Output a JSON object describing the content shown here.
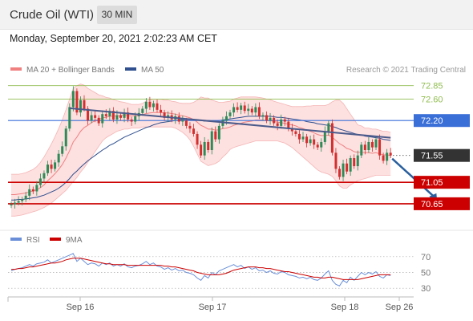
{
  "header": {
    "title": "Crude Oil (WTI)",
    "timeframe": "30 MIN"
  },
  "datetime": "Monday, September 20, 2021 2:02:23 AM CET",
  "colors": {
    "bollinger": "#f08080",
    "bollinger_fill": "#fde0e0",
    "ma50": "#2f4f8f",
    "up": "#2e8b57",
    "down": "#d32f2f",
    "resistance_green": "#8fbc4f",
    "pivot_blue": "#3a6fd8",
    "support_red": "#cc0000",
    "current": "#333333",
    "trend": "#4a5a8a",
    "arrow": "#2a5f9e",
    "rsi": "#6a8fd8",
    "rsi_ma": "#cc0000"
  },
  "chart_data": [
    {
      "type": "candlestick",
      "legend": [
        {
          "name": "MA 20 + Bollinger Bands",
          "color": "#f08080"
        },
        {
          "name": "MA 50",
          "color": "#2f4f8f"
        }
      ],
      "credit": "Research © 2021 Trading Central",
      "x_ticks": [
        "Sep 16",
        "Sep 17",
        "Sep 18",
        "Sep 26"
      ],
      "ylim": [
        70.2,
        73.1
      ],
      "levels": [
        {
          "label": "72.85",
          "value": 72.85,
          "kind": "resistance"
        },
        {
          "label": "72.60",
          "value": 72.6,
          "kind": "resistance"
        },
        {
          "label": "72.20",
          "value": 72.2,
          "kind": "pivot"
        },
        {
          "label": "71.55",
          "value": 71.55,
          "kind": "current"
        },
        {
          "label": "71.05",
          "value": 71.05,
          "kind": "support"
        },
        {
          "label": "70.65",
          "value": 70.65,
          "kind": "support"
        }
      ],
      "close": [
        70.64,
        70.67,
        70.7,
        70.73,
        70.8,
        70.92,
        70.88,
        71.0,
        71.12,
        71.22,
        71.38,
        71.3,
        71.42,
        71.58,
        71.72,
        72.05,
        72.45,
        72.75,
        72.35,
        72.58,
        72.42,
        72.2,
        72.3,
        72.25,
        72.15,
        72.32,
        72.28,
        72.38,
        72.22,
        72.3,
        72.25,
        72.35,
        72.22,
        72.18,
        72.28,
        72.34,
        72.42,
        72.55,
        72.45,
        72.52,
        72.4,
        72.35,
        72.25,
        72.3,
        72.22,
        72.28,
        72.18,
        72.2,
        72.1,
        72.05,
        71.95,
        71.75,
        71.55,
        71.8,
        71.65,
        72.0,
        71.85,
        72.1,
        72.2,
        72.28,
        72.35,
        72.45,
        72.4,
        72.48,
        72.38,
        72.42,
        72.35,
        72.45,
        72.28,
        72.3,
        72.2,
        72.25,
        72.15,
        72.1,
        72.22,
        72.18,
        72.05,
        72.0,
        71.95,
        71.85,
        71.9,
        71.78,
        71.85,
        71.75,
        71.7,
        71.8,
        72.0,
        72.15,
        71.6,
        71.3,
        71.15,
        71.4,
        71.25,
        71.5,
        71.35,
        71.55,
        71.75,
        71.65,
        71.8,
        71.7,
        71.85,
        71.55,
        71.45,
        71.6,
        71.55
      ],
      "ma20": [
        70.82,
        70.82,
        70.83,
        70.84,
        70.85,
        70.87,
        70.89,
        70.91,
        70.95,
        71.0,
        71.08,
        71.14,
        71.21,
        71.29,
        71.38,
        71.5,
        71.64,
        71.8,
        71.89,
        72.0,
        72.07,
        72.11,
        72.16,
        72.2,
        72.22,
        72.25,
        72.26,
        72.28,
        72.28,
        72.29,
        72.29,
        72.3,
        72.29,
        72.29,
        72.29,
        72.29,
        72.31,
        72.33,
        72.34,
        72.35,
        72.35,
        72.35,
        72.34,
        72.34,
        72.33,
        72.32,
        72.3,
        72.29,
        72.27,
        72.25,
        72.22,
        72.17,
        72.11,
        72.08,
        72.04,
        72.04,
        72.02,
        72.03,
        72.05,
        72.06,
        72.08,
        72.11,
        72.13,
        72.15,
        72.17,
        72.18,
        72.19,
        72.21,
        72.21,
        72.21,
        72.2,
        72.2,
        72.18,
        72.17,
        72.16,
        72.15,
        72.13,
        72.12,
        72.1,
        72.07,
        72.05,
        72.02,
        72.0,
        71.97,
        71.94,
        71.92,
        71.92,
        71.93,
        71.89,
        71.83,
        71.77,
        71.73,
        71.68,
        71.66,
        71.62,
        71.61,
        71.61,
        71.6,
        71.6,
        71.59,
        71.6,
        71.58,
        71.56,
        71.56,
        71.55
      ],
      "band_upper": [
        71.2,
        71.2,
        71.2,
        71.21,
        71.23,
        71.26,
        71.29,
        71.34,
        71.42,
        71.52,
        71.64,
        71.76,
        71.9,
        72.05,
        72.21,
        72.4,
        72.6,
        72.8,
        72.85,
        72.88,
        72.86,
        72.8,
        72.76,
        72.72,
        72.68,
        72.66,
        72.63,
        72.62,
        72.59,
        72.57,
        72.55,
        72.54,
        72.52,
        72.5,
        72.5,
        72.5,
        72.52,
        72.56,
        72.58,
        72.6,
        72.6,
        72.6,
        72.58,
        72.58,
        72.56,
        72.55,
        72.53,
        72.52,
        72.52,
        72.52,
        72.54,
        72.58,
        72.64,
        72.62,
        72.62,
        72.58,
        72.56,
        72.54,
        72.54,
        72.55,
        72.56,
        72.6,
        72.62,
        72.64,
        72.64,
        72.64,
        72.64,
        72.64,
        72.63,
        72.62,
        72.6,
        72.59,
        72.56,
        72.54,
        72.52,
        72.5,
        72.48,
        72.46,
        72.46,
        72.46,
        72.46,
        72.47,
        72.47,
        72.48,
        72.48,
        72.48,
        72.48,
        72.5,
        72.55,
        72.58,
        72.58,
        72.52,
        72.42,
        72.32,
        72.22,
        72.12,
        72.1,
        72.06,
        72.06,
        72.04,
        72.04,
        72.02,
        72.0,
        72.0,
        71.98
      ],
      "band_lower": [
        70.42,
        70.42,
        70.43,
        70.44,
        70.46,
        70.48,
        70.5,
        70.52,
        70.55,
        70.58,
        70.62,
        70.66,
        70.72,
        70.78,
        70.84,
        70.9,
        70.98,
        71.06,
        71.14,
        71.24,
        71.32,
        71.42,
        71.52,
        71.62,
        71.72,
        71.82,
        71.88,
        71.92,
        71.96,
        72.0,
        72.02,
        72.04,
        72.04,
        72.06,
        72.06,
        72.06,
        72.08,
        72.08,
        72.08,
        72.08,
        72.08,
        72.08,
        72.08,
        72.08,
        72.08,
        72.06,
        72.02,
        71.98,
        71.92,
        71.84,
        71.72,
        71.58,
        71.44,
        71.4,
        71.36,
        71.38,
        71.4,
        71.44,
        71.52,
        71.58,
        71.66,
        71.7,
        71.72,
        71.74,
        71.76,
        71.78,
        71.8,
        71.82,
        71.82,
        71.82,
        71.82,
        71.82,
        71.82,
        71.82,
        71.8,
        71.78,
        71.74,
        71.7,
        71.64,
        71.58,
        71.52,
        71.46,
        71.4,
        71.34,
        71.28,
        71.24,
        71.22,
        71.2,
        71.16,
        71.08,
        70.98,
        70.94,
        70.94,
        71.0,
        71.04,
        71.08,
        71.1,
        71.12,
        71.14,
        71.16,
        71.18,
        71.18,
        71.18,
        71.18,
        71.18
      ],
      "ma50": [
        70.72,
        70.72,
        70.73,
        70.73,
        70.74,
        70.75,
        70.76,
        70.77,
        70.79,
        70.81,
        70.84,
        70.87,
        70.9,
        70.94,
        70.99,
        71.05,
        71.12,
        71.2,
        71.26,
        71.33,
        71.39,
        71.45,
        71.5,
        71.55,
        71.6,
        71.65,
        71.69,
        71.74,
        71.77,
        71.81,
        71.85,
        71.89,
        71.92,
        71.95,
        71.98,
        72.01,
        72.04,
        72.07,
        72.09,
        72.12,
        72.14,
        72.16,
        72.17,
        72.18,
        72.19,
        72.2,
        72.21,
        72.22,
        72.22,
        72.22,
        72.22,
        72.21,
        72.2,
        72.19,
        72.19,
        72.19,
        72.19,
        72.2,
        72.21,
        72.22,
        72.23,
        72.24,
        72.25,
        72.26,
        72.27,
        72.28,
        72.28,
        72.28,
        72.28,
        72.28,
        72.28,
        72.28,
        72.27,
        72.26,
        72.26,
        72.25,
        72.24,
        72.23,
        72.22,
        72.21,
        72.2,
        72.18,
        72.17,
        72.16,
        72.14,
        72.13,
        72.12,
        72.11,
        72.09,
        72.07,
        72.04,
        72.02,
        72.0,
        71.98,
        71.96,
        71.94,
        71.93,
        71.91,
        71.9,
        71.89,
        71.88,
        71.87,
        71.85,
        71.84,
        71.83
      ],
      "trendline": {
        "start": [
          16,
          72.43
        ],
        "end": [
          104,
          71.88
        ]
      },
      "projection": {
        "from": [
          104,
          71.55
        ],
        "to": [
          117,
          70.65
        ]
      }
    },
    {
      "type": "line",
      "legend": [
        {
          "name": "RSI",
          "color": "#6a8fd8"
        },
        {
          "name": "9MA",
          "color": "#cc0000"
        }
      ],
      "ylim": [
        20,
        80
      ],
      "levels": [
        70,
        50,
        30
      ],
      "rsi": [
        52,
        54,
        55,
        56,
        58,
        60,
        58,
        61,
        62,
        63,
        66,
        62,
        64,
        66,
        68,
        70,
        72,
        74,
        64,
        68,
        64,
        60,
        62,
        61,
        58,
        62,
        60,
        62,
        58,
        60,
        58,
        61,
        57,
        56,
        58,
        59,
        61,
        64,
        60,
        62,
        58,
        57,
        54,
        56,
        53,
        55,
        52,
        53,
        50,
        49,
        47,
        43,
        40,
        46,
        43,
        50,
        47,
        52,
        54,
        56,
        58,
        60,
        57,
        59,
        55,
        57,
        54,
        56,
        52,
        53,
        50,
        52,
        49,
        48,
        51,
        50,
        47,
        46,
        45,
        43,
        44,
        42,
        44,
        41,
        40,
        43,
        48,
        52,
        40,
        35,
        33,
        40,
        37,
        44,
        40,
        45,
        50,
        47,
        50,
        48,
        51,
        45,
        43,
        47,
        46
      ],
      "rsi_ma": [
        54,
        54,
        55,
        55,
        56,
        57,
        57,
        58,
        59,
        60,
        61,
        62,
        62,
        63,
        64,
        66,
        67,
        68,
        68,
        68,
        67,
        66,
        65,
        64,
        63,
        62,
        61,
        61,
        60,
        60,
        60,
        60,
        59,
        59,
        59,
        59,
        59,
        59,
        59,
        59,
        59,
        59,
        58,
        58,
        57,
        57,
        56,
        55,
        54,
        53,
        52,
        50,
        49,
        48,
        47,
        47,
        47,
        47,
        48,
        49,
        51,
        53,
        54,
        55,
        56,
        57,
        57,
        57,
        56,
        56,
        55,
        55,
        54,
        53,
        52,
        51,
        51,
        50,
        49,
        48,
        47,
        46,
        45,
        44,
        44,
        43,
        43,
        44,
        44,
        43,
        42,
        41,
        41,
        41,
        41,
        41,
        42,
        43,
        44,
        45,
        46,
        47,
        47,
        47,
        47
      ]
    }
  ]
}
